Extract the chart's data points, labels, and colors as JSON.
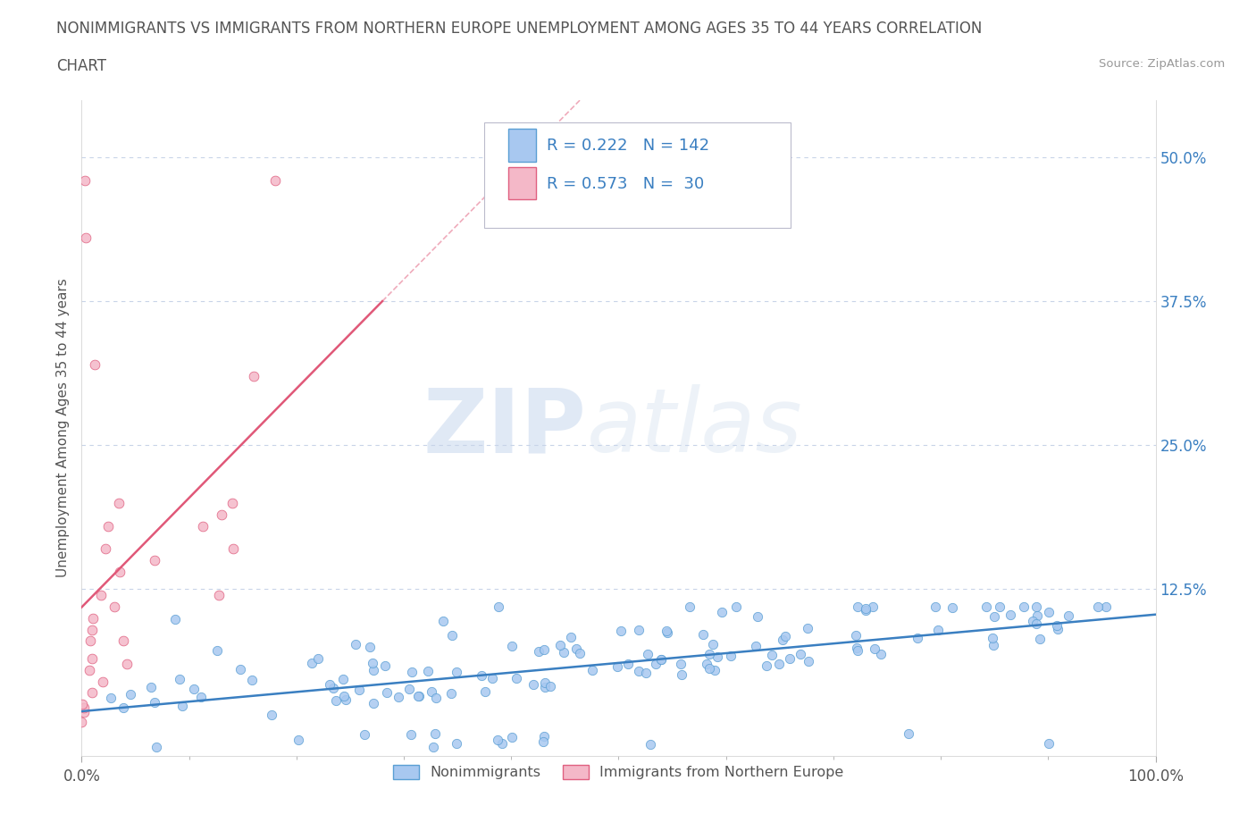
{
  "title_line1": "NONIMMIGRANTS VS IMMIGRANTS FROM NORTHERN EUROPE UNEMPLOYMENT AMONG AGES 35 TO 44 YEARS CORRELATION",
  "title_line2": "CHART",
  "source_text": "Source: ZipAtlas.com",
  "ylabel": "Unemployment Among Ages 35 to 44 years",
  "xlim": [
    0,
    1.0
  ],
  "ylim": [
    -0.02,
    0.55
  ],
  "xtick_labels": [
    "0.0%",
    "100.0%"
  ],
  "ytick_labels": [
    "12.5%",
    "25.0%",
    "37.5%",
    "50.0%"
  ],
  "ytick_values": [
    0.125,
    0.25,
    0.375,
    0.5
  ],
  "nonimm_color": "#a8c8f0",
  "nonimm_edge_color": "#5a9fd4",
  "nonimm_line_color": "#3a7fc1",
  "imm_color": "#f4b8c8",
  "imm_edge_color": "#e06080",
  "imm_line_color": "#e05878",
  "R_nonimm": 0.222,
  "N_nonimm": 142,
  "R_imm": 0.573,
  "N_imm": 30,
  "watermark_zip": "ZIP",
  "watermark_atlas": "atlas",
  "legend_nonimm": "Nonimmigrants",
  "legend_imm": "Immigrants from Northern Europe",
  "background_color": "#ffffff",
  "grid_color": "#c8d4e8",
  "title_color": "#555555",
  "source_color": "#999999",
  "legend_text_color": "#3a7fc1"
}
